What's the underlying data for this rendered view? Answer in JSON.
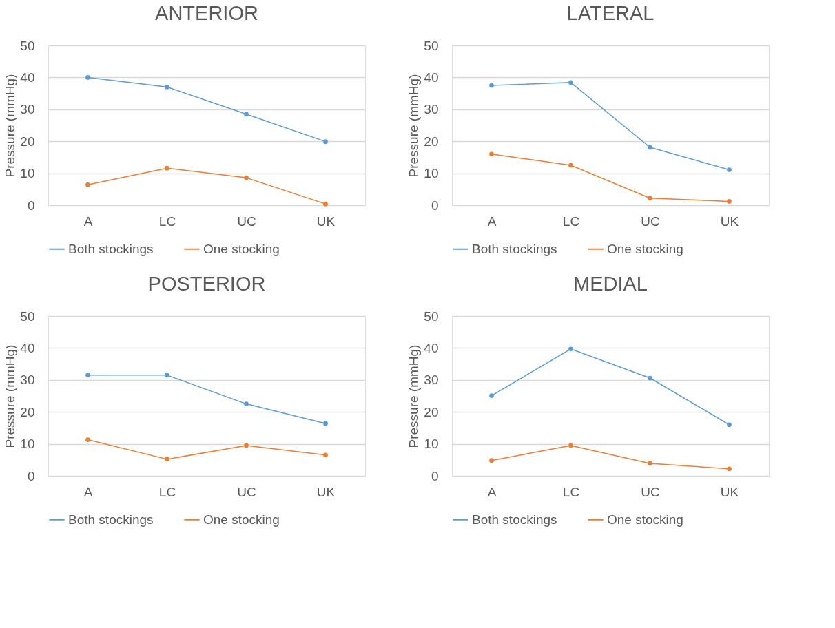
{
  "chart_data": [
    {
      "type": "line",
      "title": "ANTERIOR",
      "ylabel": "Pressure (mmHg)",
      "categories": [
        "A",
        "LC",
        "UC",
        "UK"
      ],
      "ylim": [
        0,
        50
      ],
      "yticks": [
        0,
        10,
        20,
        30,
        40,
        50
      ],
      "grid": "y",
      "legend": "bottom",
      "marker": "circle",
      "line_style": "solid",
      "series": [
        {
          "name": "Both stockings",
          "color": "#5b9bd5",
          "values": [
            40,
            37,
            28.5,
            19.9
          ]
        },
        {
          "name": "One stocking",
          "color": "#ed7d31",
          "values": [
            6.4,
            11.6,
            8.6,
            0.4
          ]
        }
      ]
    },
    {
      "type": "line",
      "title": "LATERAL",
      "ylabel": "Pressure (mmHg)",
      "categories": [
        "A",
        "LC",
        "UC",
        "UK"
      ],
      "ylim": [
        0,
        50
      ],
      "yticks": [
        0,
        10,
        20,
        30,
        40,
        50
      ],
      "grid": "y",
      "legend": "bottom",
      "marker": "circle",
      "line_style": "solid",
      "series": [
        {
          "name": "Both stockings",
          "color": "#5b9bd5",
          "values": [
            37.5,
            38.4,
            18.1,
            11.1
          ]
        },
        {
          "name": "One stocking",
          "color": "#ed7d31",
          "values": [
            16,
            12.5,
            2.2,
            1.2
          ]
        }
      ]
    },
    {
      "type": "line",
      "title": "POSTERIOR",
      "ylabel": "Pressure (mmHg)",
      "categories": [
        "A",
        "LC",
        "UC",
        "UK"
      ],
      "ylim": [
        0,
        50
      ],
      "yticks": [
        0,
        10,
        20,
        30,
        40,
        50
      ],
      "grid": "y",
      "legend": "bottom",
      "marker": "circle",
      "line_style": "solid",
      "series": [
        {
          "name": "Both stockings",
          "color": "#5b9bd5",
          "values": [
            31.5,
            31.5,
            22.5,
            16.4
          ]
        },
        {
          "name": "One stocking",
          "color": "#ed7d31",
          "values": [
            11.3,
            5.2,
            9.5,
            6.5
          ]
        }
      ]
    },
    {
      "type": "line",
      "title": "MEDIAL",
      "ylabel": "Pressure (mmHg)",
      "categories": [
        "A",
        "LC",
        "UC",
        "UK"
      ],
      "ylim": [
        0,
        50
      ],
      "yticks": [
        0,
        10,
        20,
        30,
        40,
        50
      ],
      "grid": "y",
      "legend": "bottom",
      "marker": "circle",
      "line_style": "solid",
      "series": [
        {
          "name": "Both stockings",
          "color": "#5b9bd5",
          "values": [
            25.1,
            39.7,
            30.6,
            16.0
          ]
        },
        {
          "name": "One stocking",
          "color": "#ed7d31",
          "values": [
            4.8,
            9.5,
            3.9,
            2.2
          ]
        }
      ]
    }
  ]
}
